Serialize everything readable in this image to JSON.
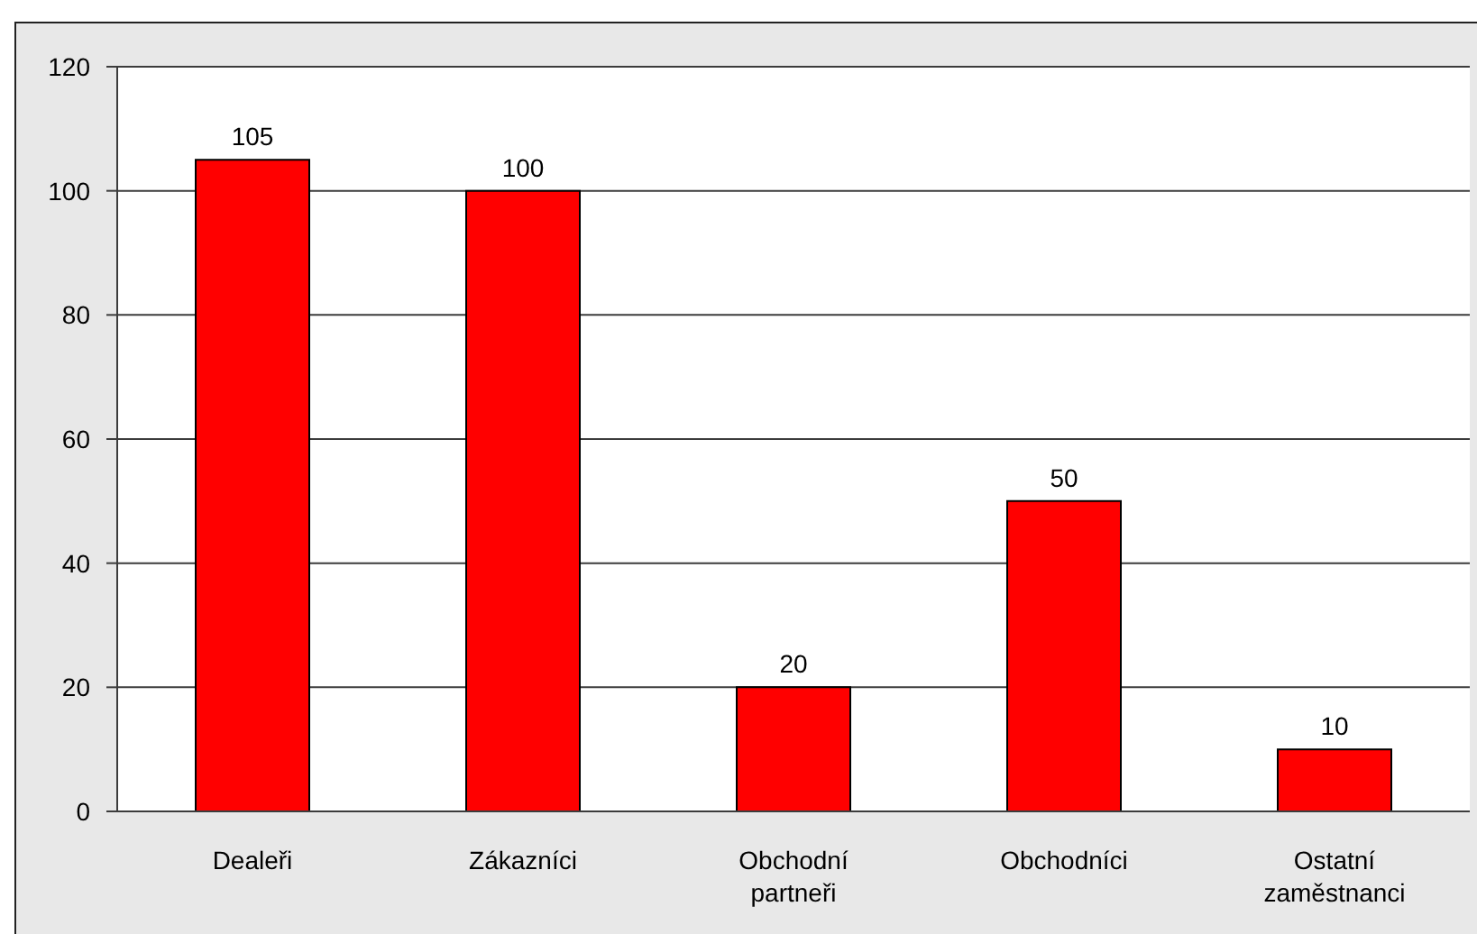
{
  "chart_data": {
    "type": "bar",
    "categories": [
      "Dealeři",
      "Zákazníci",
      "Obchodní partneři",
      "Obchodníci",
      "Ostatní zaměstnanci"
    ],
    "values": [
      105,
      100,
      20,
      50,
      10
    ],
    "color": "#ff0000",
    "ylim": [
      0,
      120
    ],
    "yticks": [
      0,
      20,
      40,
      60,
      80,
      100,
      120
    ],
    "grid": "y",
    "data_labels": true
  }
}
